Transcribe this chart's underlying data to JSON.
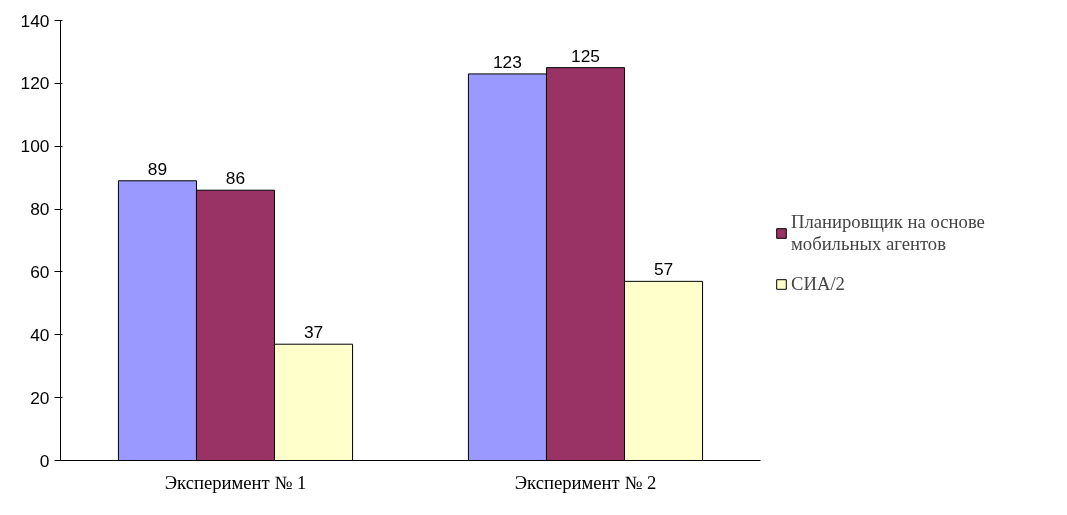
{
  "chart_data": {
    "type": "bar",
    "categories": [
      "Эксперимент № 1",
      "Эксперимент № 2"
    ],
    "series": [
      {
        "color": "#9999ff",
        "values": [
          89,
          123
        ]
      },
      {
        "name": "Планировщик на основе мобильных агентов",
        "color": "#993366",
        "values": [
          86,
          125
        ]
      },
      {
        "name": "СИА/2",
        "color": "#ffffcc",
        "values": [
          37,
          57
        ]
      }
    ],
    "ylim": [
      0,
      140
    ],
    "yticks": [
      0,
      20,
      40,
      60,
      80,
      100,
      120,
      140
    ],
    "grid": false,
    "legend": "right",
    "data_labels": true
  }
}
